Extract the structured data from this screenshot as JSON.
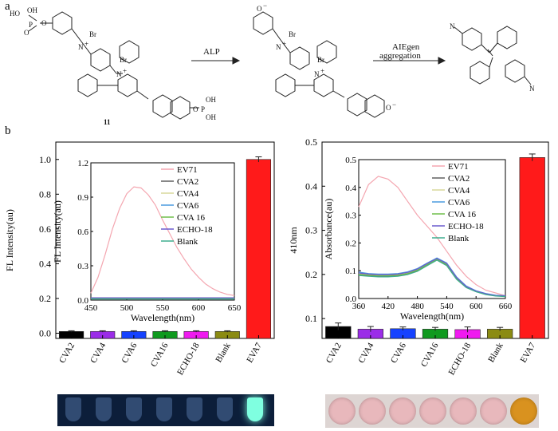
{
  "panel_labels": {
    "a": "a",
    "b": "b"
  },
  "scheme": {
    "step1_arrow_label": "ALP",
    "step2_arrow_label_line1": "AIEgen",
    "step2_arrow_label_line2": "aggregation",
    "compound_number": "11",
    "atom_br": "Br",
    "atom_n": "N",
    "atom_o": "O",
    "atom_p": "P",
    "group_oh": "OH",
    "group_ho": "HO",
    "plus_sign": "+",
    "minus_sign": "−"
  },
  "colors": {
    "bar_fills": [
      "#000000",
      "#9b2ce8",
      "#1542ff",
      "#0f9a1e",
      "#f01bf0",
      "#8b8b12",
      "#ff1a1a"
    ],
    "line_colors": [
      "#f4a6b0",
      "#606060",
      "#d8d89a",
      "#4a9adf",
      "#6fbf4a",
      "#6a5acd",
      "#3fae8f"
    ],
    "fl_tube_glow": "#7fffe0",
    "abs_well_pink": "#e8b8bc",
    "abs_well_orange": "#d9921f"
  },
  "chart_data": [
    {
      "type": "bar",
      "title": "",
      "ylabel": "FL Intensity(au)",
      "categories": [
        "CVA2",
        "CVA4",
        "CVA6",
        "CVA16",
        "ECHO-18",
        "Blank",
        "EVA7"
      ],
      "values": [
        0.01,
        0.01,
        0.01,
        0.01,
        0.01,
        0.01,
        1.0
      ],
      "ylim": [
        -0.03,
        1.1
      ],
      "yticks": [
        "0.0",
        "0.2",
        "0.4",
        "0.6",
        "0.8",
        "1.0"
      ],
      "inset": {
        "type": "line",
        "xlabel": "Wavelength(nm)",
        "ylabel": "FL Intensity(au)",
        "xlim": [
          450,
          650
        ],
        "ylim": [
          0,
          1.2
        ],
        "xticks": [
          "450",
          "500",
          "550",
          "600",
          "650"
        ],
        "yticks": [
          "0.0",
          "0.3",
          "0.6",
          "0.9",
          "1.2"
        ],
        "x": [
          450,
          460,
          470,
          480,
          490,
          500,
          510,
          520,
          530,
          540,
          550,
          560,
          570,
          580,
          590,
          600,
          610,
          620,
          630,
          640,
          650
        ],
        "series": [
          {
            "name": "EV71",
            "values": [
              0.06,
              0.2,
              0.4,
              0.62,
              0.8,
              0.93,
              0.99,
              0.98,
              0.92,
              0.83,
              0.7,
              0.58,
              0.46,
              0.36,
              0.27,
              0.2,
              0.14,
              0.1,
              0.07,
              0.05,
              0.04
            ]
          },
          {
            "name": "CVA2",
            "values": [
              0.02,
              0.02,
              0.02,
              0.02,
              0.02,
              0.02,
              0.02,
              0.02,
              0.02,
              0.02,
              0.02,
              0.02,
              0.02,
              0.02,
              0.02,
              0.02,
              0.02,
              0.02,
              0.02,
              0.02,
              0.02
            ]
          },
          {
            "name": "CVA4",
            "values": [
              0.015,
              0.015,
              0.015,
              0.015,
              0.015,
              0.015,
              0.015,
              0.015,
              0.015,
              0.015,
              0.015,
              0.015,
              0.015,
              0.015,
              0.015,
              0.015,
              0.015,
              0.015,
              0.015,
              0.015,
              0.015
            ]
          },
          {
            "name": "CVA6",
            "values": [
              0.02,
              0.02,
              0.02,
              0.02,
              0.02,
              0.02,
              0.02,
              0.02,
              0.02,
              0.02,
              0.02,
              0.02,
              0.02,
              0.02,
              0.02,
              0.02,
              0.02,
              0.02,
              0.02,
              0.02,
              0.02
            ]
          },
          {
            "name": "CVA 16",
            "values": [
              0.015,
              0.015,
              0.015,
              0.015,
              0.015,
              0.015,
              0.015,
              0.015,
              0.015,
              0.015,
              0.015,
              0.015,
              0.015,
              0.015,
              0.015,
              0.015,
              0.015,
              0.015,
              0.015,
              0.015,
              0.015
            ]
          },
          {
            "name": "ECHO-18",
            "values": [
              0.02,
              0.02,
              0.02,
              0.02,
              0.02,
              0.02,
              0.02,
              0.02,
              0.02,
              0.02,
              0.02,
              0.02,
              0.02,
              0.02,
              0.02,
              0.02,
              0.02,
              0.02,
              0.02,
              0.02,
              0.02
            ]
          },
          {
            "name": "Blank",
            "values": [
              0.01,
              0.01,
              0.01,
              0.01,
              0.01,
              0.01,
              0.01,
              0.01,
              0.01,
              0.01,
              0.01,
              0.01,
              0.01,
              0.01,
              0.01,
              0.01,
              0.01,
              0.01,
              0.01,
              0.01,
              0.01
            ]
          }
        ]
      }
    },
    {
      "type": "bar",
      "title": "",
      "ylabel": "410nm",
      "categories": [
        "CVA2",
        "CVA4",
        "CVA6",
        "CVA16",
        "ECHO-18",
        "Blank",
        "EVA7"
      ],
      "values": [
        0.082,
        0.076,
        0.077,
        0.076,
        0.075,
        0.076,
        0.465
      ],
      "errors": [
        0.008,
        0.006,
        0.004,
        0.004,
        0.006,
        0.004,
        0.008
      ],
      "ylim": [
        0.055,
        0.5
      ],
      "yticks": [
        "0.1",
        "0.2",
        "0.3",
        "0.4",
        "0.5"
      ],
      "inset": {
        "type": "line",
        "xlabel": "Wavelength(nm)",
        "ylabel": "Absorbance(au)",
        "xlim": [
          360,
          660
        ],
        "ylim": [
          0,
          0.5
        ],
        "xticks": [
          "360",
          "420",
          "480",
          "540",
          "600",
          "660"
        ],
        "yticks": [
          "0.0",
          "0.1",
          "0.2",
          "0.3",
          "0.4",
          "0.5"
        ],
        "x": [
          360,
          380,
          400,
          420,
          440,
          460,
          480,
          500,
          520,
          540,
          560,
          580,
          600,
          620,
          640,
          660
        ],
        "series": [
          {
            "name": "EV71",
            "values": [
              0.33,
              0.41,
              0.44,
              0.43,
              0.4,
              0.35,
              0.3,
              0.26,
              0.22,
              0.17,
              0.12,
              0.08,
              0.05,
              0.03,
              0.02,
              0.01
            ]
          },
          {
            "name": "CVA2",
            "values": [
              0.085,
              0.082,
              0.08,
              0.08,
              0.082,
              0.088,
              0.1,
              0.12,
              0.14,
              0.12,
              0.07,
              0.04,
              0.025,
              0.015,
              0.01,
              0.008
            ]
          },
          {
            "name": "CVA4",
            "values": [
              0.09,
              0.086,
              0.084,
              0.084,
              0.086,
              0.092,
              0.104,
              0.124,
              0.143,
              0.124,
              0.074,
              0.042,
              0.026,
              0.016,
              0.011,
              0.009
            ]
          },
          {
            "name": "CVA6",
            "values": [
              0.095,
              0.09,
              0.088,
              0.088,
              0.09,
              0.096,
              0.108,
              0.128,
              0.146,
              0.128,
              0.078,
              0.045,
              0.028,
              0.018,
              0.012,
              0.01
            ]
          },
          {
            "name": "CVA 16",
            "values": [
              0.087,
              0.084,
              0.082,
              0.082,
              0.084,
              0.09,
              0.102,
              0.122,
              0.141,
              0.122,
              0.072,
              0.041,
              0.025,
              0.015,
              0.01,
              0.008
            ]
          },
          {
            "name": "ECHO-18",
            "values": [
              0.092,
              0.088,
              0.086,
              0.086,
              0.088,
              0.094,
              0.106,
              0.126,
              0.144,
              0.126,
              0.076,
              0.043,
              0.027,
              0.017,
              0.011,
              0.009
            ]
          },
          {
            "name": "Blank",
            "values": [
              0.083,
              0.08,
              0.078,
              0.078,
              0.08,
              0.086,
              0.098,
              0.118,
              0.138,
              0.118,
              0.069,
              0.039,
              0.024,
              0.014,
              0.009,
              0.007
            ]
          }
        ]
      }
    }
  ]
}
